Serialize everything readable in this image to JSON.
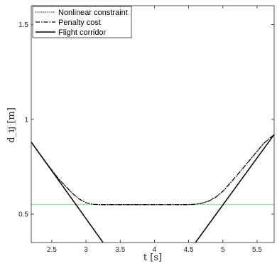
{
  "chart_data": {
    "type": "line",
    "xlabel": "t [s]",
    "ylabel": "d_ij [m]",
    "xlim": [
      2.2,
      5.75
    ],
    "ylim": [
      0.35,
      1.6
    ],
    "xticks": [
      2.5,
      3,
      3.5,
      4,
      4.5,
      5,
      5.5
    ],
    "xtick_labels": [
      "2.5",
      "3",
      "3.5",
      "4",
      "4.5",
      "5",
      "5.5"
    ],
    "yticks": [
      0.5,
      1,
      1.5
    ],
    "ytick_labels": [
      "0.5",
      "1",
      "1.5"
    ],
    "grid": false,
    "legend_position": "top-left",
    "series": [
      {
        "name": "Nonlinear constraint",
        "style": "dotted",
        "color": "#000000",
        "x": [
          2.2,
          2.4,
          2.6,
          2.8,
          2.9,
          3.0,
          3.1,
          3.2,
          3.3,
          3.5,
          4.0,
          4.5,
          4.6,
          4.7,
          4.8,
          4.9,
          5.0,
          5.2,
          5.4,
          5.6,
          5.75
        ],
        "y": [
          0.88,
          0.78,
          0.686,
          0.61,
          0.58,
          0.56,
          0.552,
          0.55,
          0.55,
          0.55,
          0.55,
          0.55,
          0.552,
          0.558,
          0.57,
          0.59,
          0.62,
          0.702,
          0.788,
          0.874,
          0.92
        ]
      },
      {
        "name": "Penalty cost",
        "style": "dashdot",
        "color": "#000000",
        "x": [
          2.2,
          2.4,
          2.6,
          2.8,
          2.9,
          3.0,
          3.1,
          3.2,
          3.3,
          3.5,
          4.0,
          4.5,
          4.6,
          4.7,
          4.8,
          4.9,
          5.0,
          5.2,
          5.4,
          5.6,
          5.75
        ],
        "y": [
          0.88,
          0.78,
          0.686,
          0.61,
          0.58,
          0.56,
          0.552,
          0.55,
          0.55,
          0.55,
          0.55,
          0.55,
          0.552,
          0.558,
          0.57,
          0.59,
          0.62,
          0.702,
          0.788,
          0.874,
          0.92
        ]
      },
      {
        "name": "Flight corridor",
        "style": "solid",
        "color": "#000000",
        "segments": [
          {
            "x": [
              2.2,
              3.25
            ],
            "y": [
              0.88,
              0.35
            ]
          },
          {
            "x": [
              4.6,
              5.75
            ],
            "y": [
              0.35,
              0.92
            ]
          }
        ]
      },
      {
        "style": "solid",
        "color": "#7ee07e",
        "x": [
          2.2,
          5.75
        ],
        "y": [
          0.55,
          0.55
        ]
      }
    ]
  }
}
